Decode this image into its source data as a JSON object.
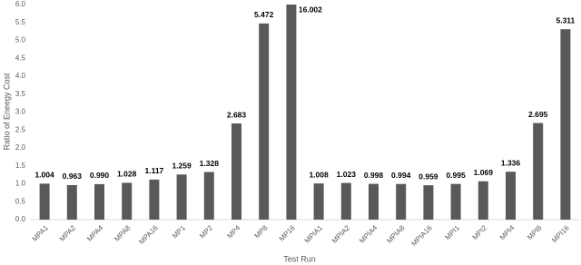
{
  "chart_data": {
    "type": "bar",
    "y_label": "Ratio of Eneegy Cost",
    "x_label": "Test Run",
    "categories": [
      "MPA1",
      "MPA2",
      "MPA4",
      "MPA8",
      "MPA16",
      "MP1",
      "MP2",
      "MP4",
      "MP8",
      "MP16",
      "MPIA1",
      "MPIA2",
      "MPIA4",
      "MPIA8",
      "MPIA16",
      "MPI1",
      "MPI2",
      "MPI4",
      "MPI8",
      "MPI16"
    ],
    "values": [
      1.004,
      0.963,
      0.99,
      1.028,
      1.117,
      1.259,
      1.328,
      2.683,
      5.472,
      16.002,
      1.008,
      1.023,
      0.998,
      0.994,
      0.959,
      0.995,
      1.069,
      1.336,
      2.695,
      5.311
    ],
    "value_labels": [
      "1.004",
      "0.963",
      "0.990",
      "1.028",
      "1.117",
      "1.259",
      "1.328",
      "2.683",
      "5.472",
      "16.002",
      "1.008",
      "1.023",
      "0.998",
      "0.994",
      "0.959",
      "0.995",
      "1.069",
      "1.336",
      "2.695",
      "5.311"
    ],
    "color": "#595959",
    "ylim": [
      0,
      6
    ],
    "yticks": [
      {
        "value": 0,
        "label": "0.0"
      },
      {
        "value": 0.5,
        "label": "0.5"
      },
      {
        "value": 1,
        "label": "1.0"
      },
      {
        "value": 1.5,
        "label": "1.5"
      },
      {
        "value": 2,
        "label": "2.0"
      },
      {
        "value": 2.5,
        "label": "2.5"
      },
      {
        "value": 3,
        "label": "3.0"
      },
      {
        "value": 3.5,
        "label": "3.5"
      },
      {
        "value": 4,
        "label": "4.0"
      },
      {
        "value": 4.5,
        "label": "4.5"
      },
      {
        "value": 5,
        "label": "5.0"
      },
      {
        "value": 5.5,
        "label": "5.5"
      },
      {
        "value": 6,
        "label": "6.0"
      }
    ],
    "grid": false
  }
}
